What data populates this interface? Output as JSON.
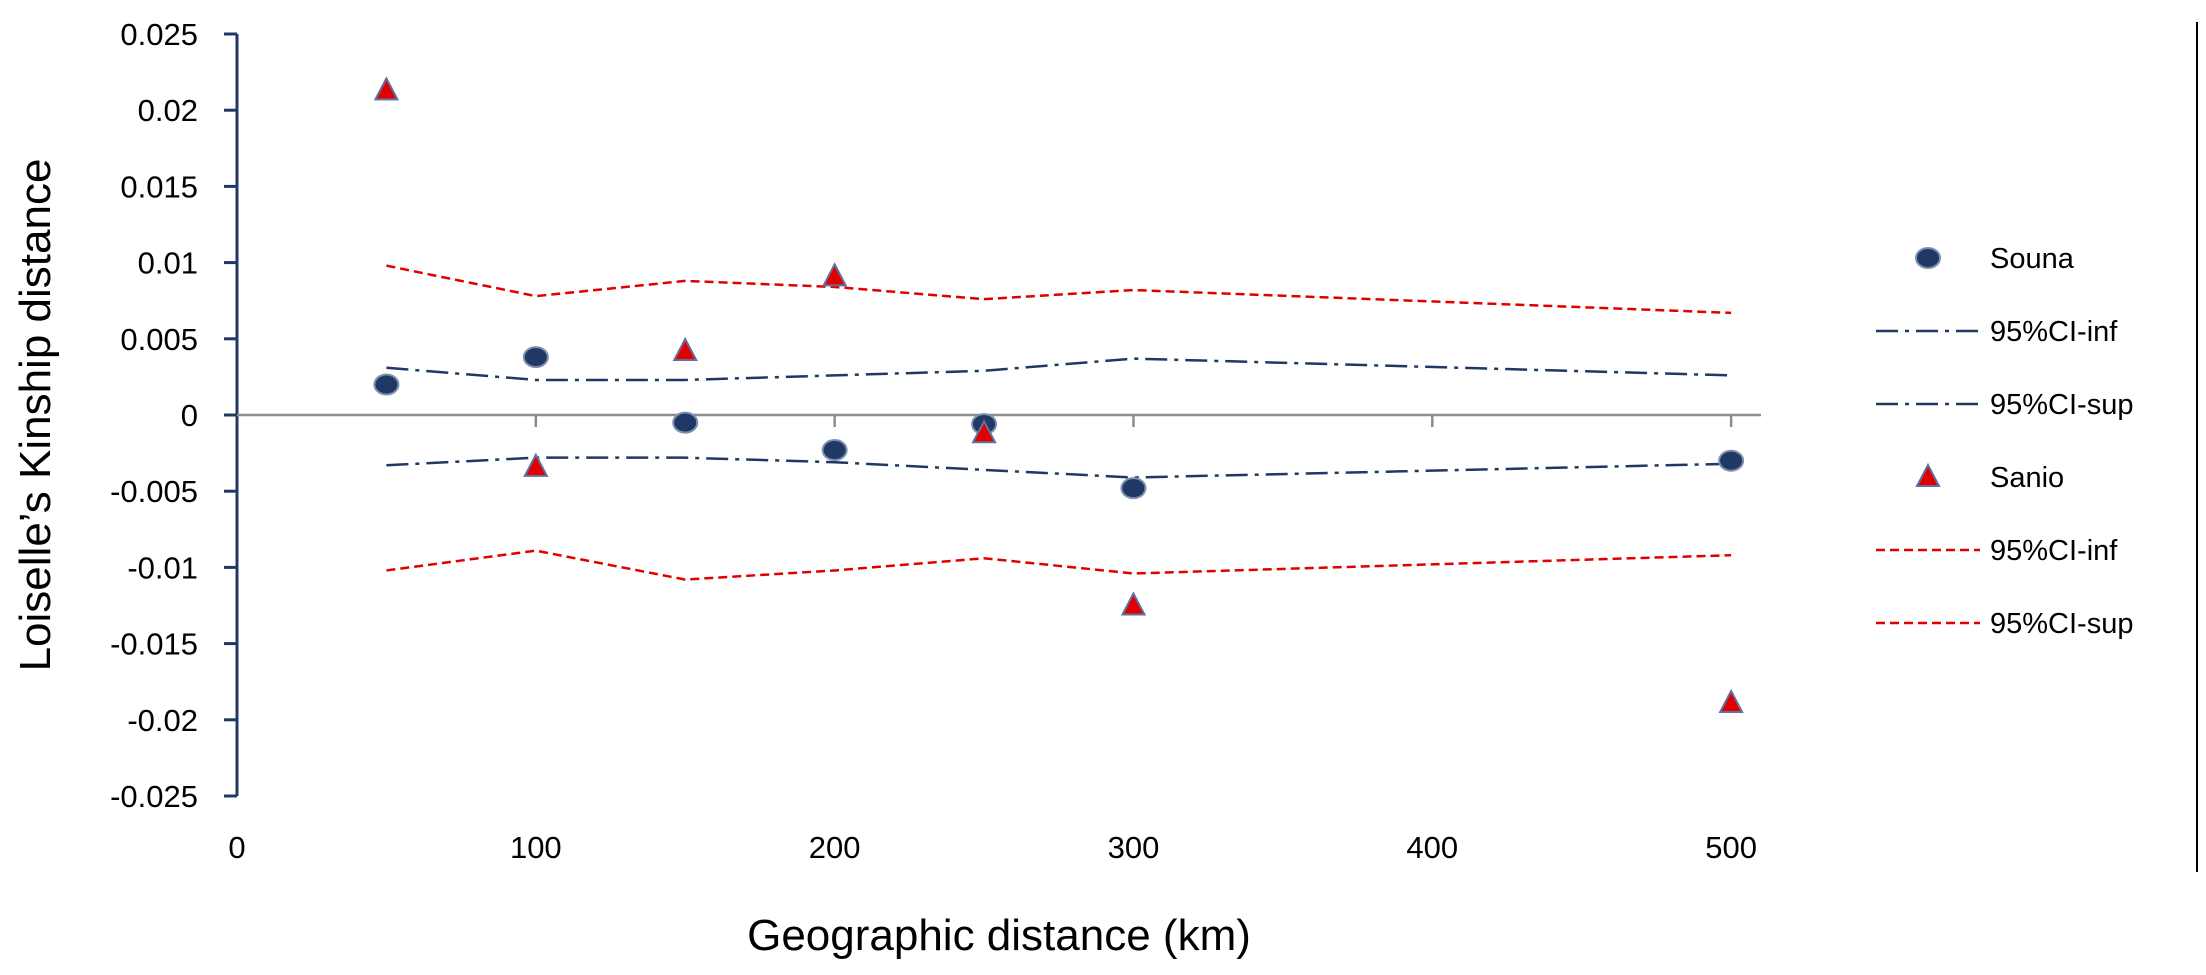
{
  "chart_data": {
    "type": "scatter",
    "title": "",
    "xlabel": "Geographic distance (km)",
    "ylabel": "Loiselle’s Kinship distance",
    "xlim": [
      0,
      510
    ],
    "ylim": [
      -0.025,
      0.025
    ],
    "x_ticks": [
      0,
      100,
      200,
      300,
      400,
      500
    ],
    "x_tick_labels": [
      "0",
      "100",
      "200",
      "300",
      "400",
      "500"
    ],
    "y_ticks": [
      0.025,
      0.02,
      0.015,
      0.01,
      0.005,
      0,
      -0.005,
      -0.01,
      -0.015,
      -0.02,
      -0.025
    ],
    "y_tick_labels": [
      "0.025",
      "0.02",
      "0.015",
      "0.01",
      "0.005",
      "0",
      "-0.005",
      "-0.01",
      "-0.015",
      "-0.02",
      "-0.025"
    ],
    "x_minor_ticks": [
      150,
      250
    ],
    "grid": false,
    "legend_position": "right",
    "series": [
      {
        "name": "Souna",
        "kind": "points",
        "marker": "circle",
        "color": "#1f3864",
        "x": [
          50,
          100,
          150,
          200,
          250,
          300,
          500
        ],
        "y": [
          0.002,
          0.0038,
          -0.0005,
          -0.0023,
          -0.0006,
          -0.0048,
          -0.003
        ]
      },
      {
        "name": "95%CI-inf",
        "kind": "line",
        "style": "dashdot",
        "color": "#1f3864",
        "x": [
          50,
          100,
          150,
          200,
          250,
          300,
          500
        ],
        "y": [
          0.0031,
          0.0023,
          0.0023,
          0.0026,
          0.0029,
          0.0037,
          0.0026
        ]
      },
      {
        "name": "95%CI-sup",
        "kind": "line",
        "style": "dashdot",
        "color": "#1f3864",
        "x": [
          50,
          100,
          150,
          200,
          250,
          300,
          500
        ],
        "y": [
          -0.0033,
          -0.0028,
          -0.0028,
          -0.0031,
          -0.0036,
          -0.0041,
          -0.0032
        ]
      },
      {
        "name": "Sanio",
        "kind": "points",
        "marker": "triangle",
        "color": "#e00000",
        "x": [
          50,
          100,
          150,
          200,
          250,
          300,
          500
        ],
        "y": [
          0.0213,
          -0.0034,
          0.0042,
          0.0091,
          -0.0012,
          -0.0125,
          -0.0189
        ]
      },
      {
        "name": "95%CI-inf",
        "kind": "line",
        "style": "dashed",
        "color": "#e00000",
        "x": [
          50,
          100,
          150,
          200,
          250,
          300,
          500
        ],
        "y": [
          0.0098,
          0.0078,
          0.0088,
          0.0084,
          0.0076,
          0.0082,
          0.0067
        ]
      },
      {
        "name": "95%CI-sup",
        "kind": "line",
        "style": "dashed",
        "color": "#e00000",
        "x": [
          50,
          100,
          150,
          200,
          250,
          300,
          500
        ],
        "y": [
          -0.0102,
          -0.0089,
          -0.0108,
          -0.0102,
          -0.0094,
          -0.0104,
          -0.0092
        ]
      }
    ]
  }
}
